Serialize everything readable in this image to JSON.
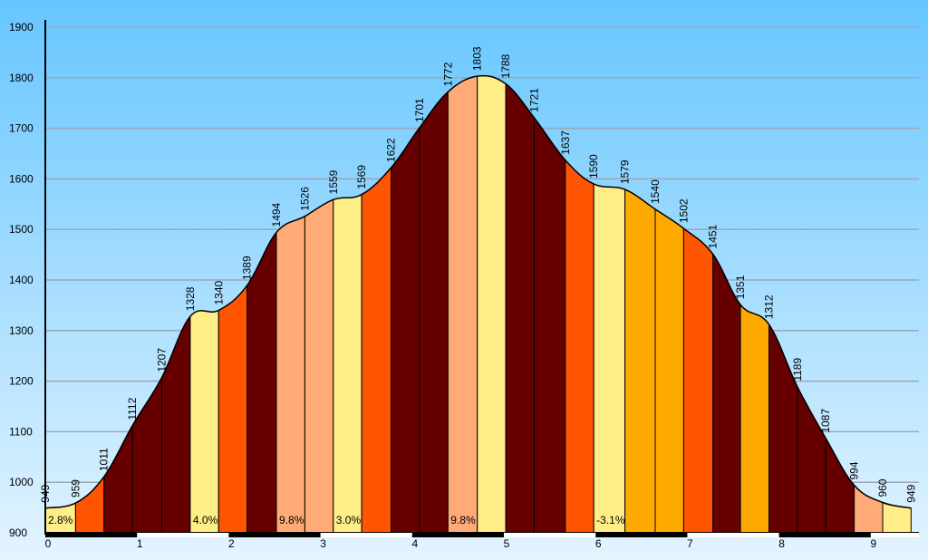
{
  "chart_data": {
    "type": "area",
    "title": "",
    "xlabel": "",
    "ylabel": "",
    "ylim": [
      900,
      1900
    ],
    "xlim": [
      0,
      9.5
    ],
    "grid": true,
    "y_ticks": [
      900,
      1000,
      1100,
      1200,
      1300,
      1400,
      1500,
      1600,
      1700,
      1800,
      1900
    ],
    "x_ticks": [
      0,
      1,
      2,
      3,
      4,
      5,
      6,
      7,
      8,
      9
    ],
    "profile": [
      {
        "x": 0.0,
        "y": 949
      },
      {
        "x": 0.33,
        "y": 959
      },
      {
        "x": 0.64,
        "y": 1011
      },
      {
        "x": 0.95,
        "y": 1112
      },
      {
        "x": 1.27,
        "y": 1207
      },
      {
        "x": 1.58,
        "y": 1328
      },
      {
        "x": 1.89,
        "y": 1340
      },
      {
        "x": 2.2,
        "y": 1389
      },
      {
        "x": 2.52,
        "y": 1494
      },
      {
        "x": 2.83,
        "y": 1526
      },
      {
        "x": 3.14,
        "y": 1559
      },
      {
        "x": 3.45,
        "y": 1569
      },
      {
        "x": 3.77,
        "y": 1622
      },
      {
        "x": 4.08,
        "y": 1701
      },
      {
        "x": 4.39,
        "y": 1772
      },
      {
        "x": 4.71,
        "y": 1803
      },
      {
        "x": 5.02,
        "y": 1788
      },
      {
        "x": 5.33,
        "y": 1721
      },
      {
        "x": 5.67,
        "y": 1637
      },
      {
        "x": 5.98,
        "y": 1590
      },
      {
        "x": 6.32,
        "y": 1579
      },
      {
        "x": 6.65,
        "y": 1540
      },
      {
        "x": 6.96,
        "y": 1502
      },
      {
        "x": 7.28,
        "y": 1451
      },
      {
        "x": 7.58,
        "y": 1351
      },
      {
        "x": 7.89,
        "y": 1312
      },
      {
        "x": 8.2,
        "y": 1189
      },
      {
        "x": 8.51,
        "y": 1087
      },
      {
        "x": 8.82,
        "y": 994
      },
      {
        "x": 9.13,
        "y": 960
      },
      {
        "x": 9.44,
        "y": 949
      }
    ],
    "segment_colors": [
      "#FFEE88",
      "#FF5500",
      "#660000",
      "#660000",
      "#660000",
      "#FFEE88",
      "#FF5500",
      "#660000",
      "#FFAA77",
      "#FFAA77",
      "#FFEE88",
      "#FF5500",
      "#660000",
      "#660000",
      "#FFAA77",
      "#FFEE88",
      "#660000",
      "#660000",
      "#FF5500",
      "#FFEE88",
      "#FFAA00",
      "#FFAA00",
      "#FF5500",
      "#660000",
      "#FFAA00",
      "#660000",
      "#660000",
      "#660000",
      "#FFAA77",
      "#FFEE88"
    ],
    "grade_labels": [
      {
        "x": 0.0,
        "text": "2.8%"
      },
      {
        "x": 1.58,
        "text": "4.0%"
      },
      {
        "x": 2.52,
        "text": "9.8%"
      },
      {
        "x": 3.14,
        "text": "3.0%"
      },
      {
        "x": 4.39,
        "text": "9.8%"
      },
      {
        "x": 5.98,
        "text": "-3.1%"
      }
    ],
    "km_bar_dark": [
      [
        0,
        1
      ],
      [
        2,
        3
      ],
      [
        4,
        5
      ],
      [
        6,
        7
      ],
      [
        8,
        9
      ]
    ]
  }
}
